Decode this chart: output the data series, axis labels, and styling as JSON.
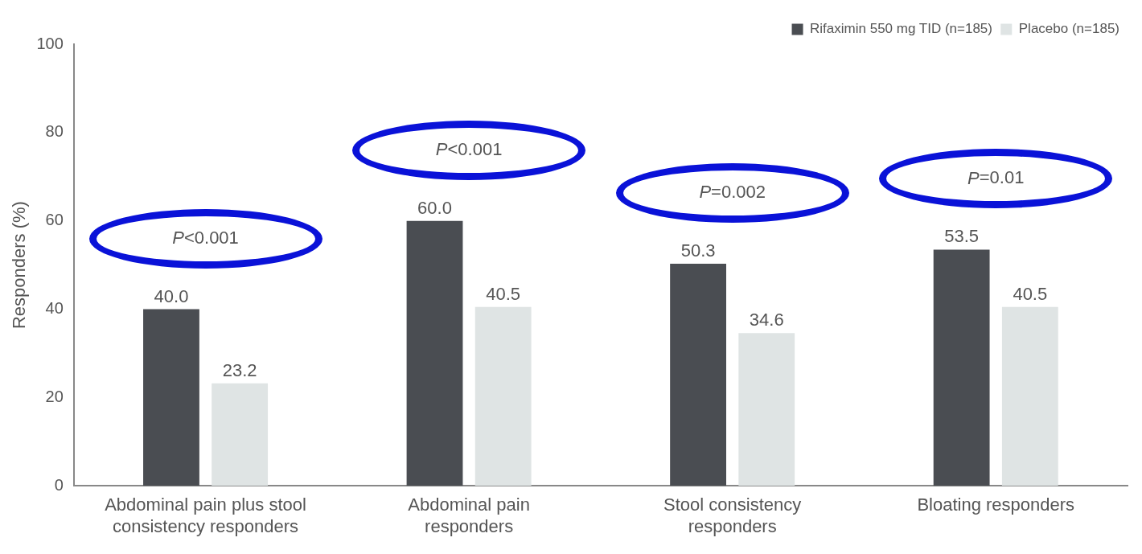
{
  "chart_data": {
    "type": "bar",
    "ylabel": "Responders (%)",
    "categories": [
      "Abdominal pain plus stool consistency responders",
      "Abdominal pain responders",
      "Stool consistency responders",
      "Bloating responders"
    ],
    "series": [
      {
        "name": "Rifaximin 550 mg TID (n=185)",
        "color": "#4a4d52",
        "values": [
          40.0,
          60.0,
          50.3,
          53.5
        ],
        "value_labels": [
          "40.0",
          "60.0",
          "50.3",
          "53.5"
        ]
      },
      {
        "name": "Placebo (n=185)",
        "color": "#dfe4e4",
        "values": [
          23.2,
          40.5,
          34.6,
          40.5
        ],
        "value_labels": [
          "23.2",
          "40.5",
          "34.6",
          "40.5"
        ]
      }
    ],
    "ylim": [
      0,
      100
    ],
    "yticks": [
      0,
      20,
      40,
      60,
      80,
      100
    ],
    "grid": false,
    "legend": "top right",
    "annotations": [
      "P<0.001",
      "P<0.001",
      "P=0.002",
      "P=0.01"
    ]
  }
}
